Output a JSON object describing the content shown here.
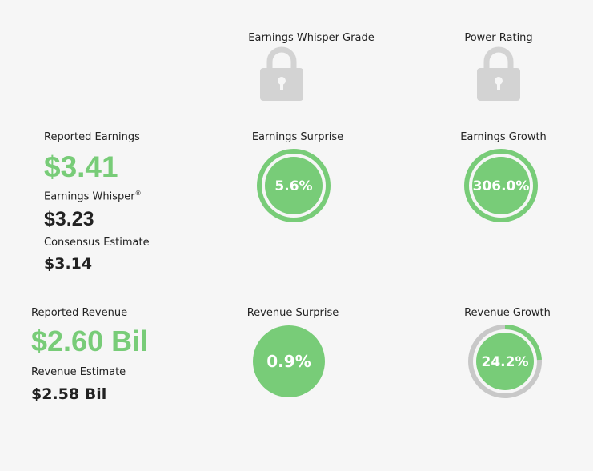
{
  "colors": {
    "green": "#78cc78",
    "gray_ring": "#c8c8c8",
    "lock": "#d3d3d3",
    "background": "#f6f6f6"
  },
  "grade": {
    "label": "Earnings Whisper Grade",
    "icon": "lock-icon"
  },
  "power": {
    "label": "Power Rating",
    "icon": "lock-icon"
  },
  "earnings": {
    "reported_label": "Reported Earnings",
    "reported_value": "$3.41",
    "whisper_label": "Earnings Whisper",
    "whisper_mark": "®",
    "whisper_value": "$3.23",
    "consensus_label": "Consensus Estimate",
    "consensus_value": "$3.14"
  },
  "earnings_surprise": {
    "label": "Earnings Surprise",
    "value_text": "5.6%",
    "ring_fraction": 1.0
  },
  "earnings_growth": {
    "label": "Earnings Growth",
    "value_text": "306.0%",
    "ring_fraction": 1.0
  },
  "revenue": {
    "reported_label": "Reported Revenue",
    "reported_value": "$2.60 Bil",
    "estimate_label": "Revenue Estimate",
    "estimate_value": "$2.58 Bil"
  },
  "revenue_surprise": {
    "label": "Revenue Surprise",
    "value_text": "0.9%"
  },
  "revenue_growth": {
    "label": "Revenue Growth",
    "value_text": "24.2%",
    "ring_fraction": 0.242
  }
}
